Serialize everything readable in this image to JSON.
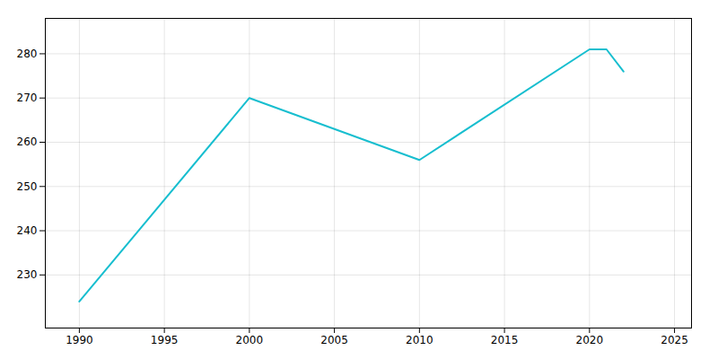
{
  "chart_data": {
    "type": "line",
    "x": [
      1990,
      2000,
      2010,
      2020,
      2021,
      2022
    ],
    "values": [
      224,
      270,
      256,
      281,
      281,
      276
    ],
    "color": "#17becf",
    "xlim": [
      1988,
      2026
    ],
    "ylim": [
      218,
      288
    ],
    "xticks": [
      1990,
      1995,
      2000,
      2005,
      2010,
      2015,
      2020,
      2025
    ],
    "yticks": [
      230,
      240,
      250,
      260,
      270,
      280
    ],
    "grid": true
  }
}
